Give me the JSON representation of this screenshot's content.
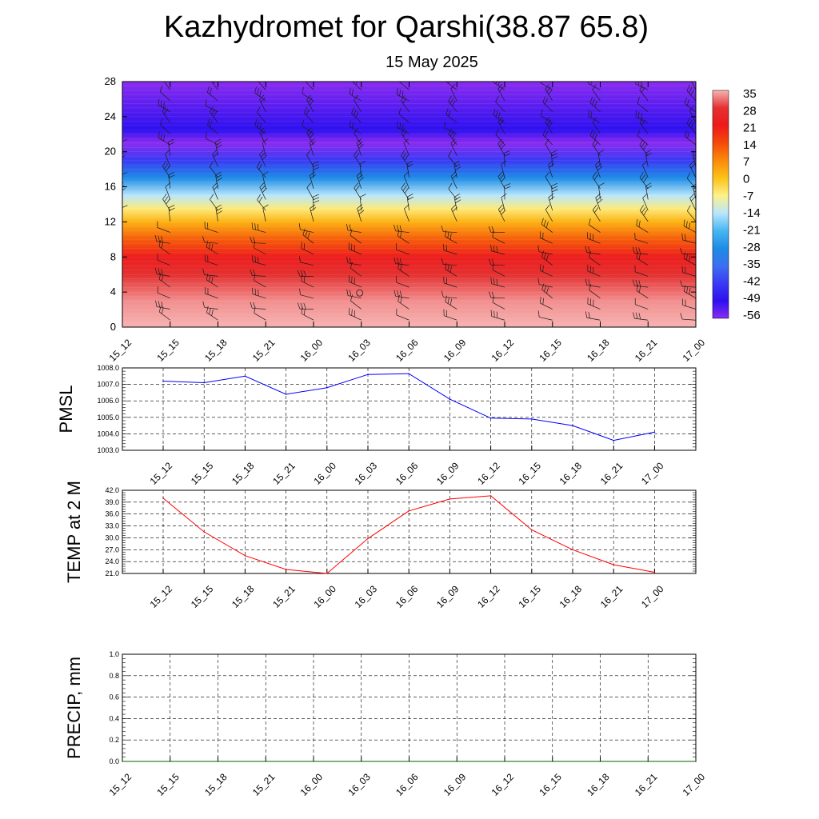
{
  "title": "Kazhydromet for Qarshi(38.87 65.8)",
  "subtitle": "15 May 2025",
  "time_labels": [
    "15_12",
    "15_15",
    "15_18",
    "15_21",
    "16_00",
    "16_03",
    "16_06",
    "16_09",
    "16_12",
    "16_15",
    "16_18",
    "16_21",
    "17_00"
  ],
  "chart_data": [
    {
      "type": "heatmap",
      "title": "",
      "ylabel": "",
      "ylim": [
        0,
        28
      ],
      "yticks": [
        "0",
        "4",
        "8",
        "12",
        "16",
        "20",
        "24",
        "28"
      ],
      "x": [
        "15_12",
        "15_15",
        "15_18",
        "15_21",
        "16_00",
        "16_03",
        "16_06",
        "16_09",
        "16_12",
        "16_15",
        "16_18",
        "16_21",
        "17_00"
      ],
      "colorbar_labels": [
        "35",
        "28",
        "21",
        "14",
        "7",
        "0",
        "-7",
        "-14",
        "-21",
        "-28",
        "-35",
        "-42",
        "-49",
        "-56"
      ],
      "colorbar_colors": [
        "#f7b3b3",
        "#e43030",
        "#ee1a1a",
        "#f44a0a",
        "#fb8a0a",
        "#fcc217",
        "#fdf18a",
        "#b9e6fb",
        "#47b7f2",
        "#1e8ce6",
        "#3a70f0",
        "#3a3af5",
        "#2d10f0",
        "#8a2cf0"
      ],
      "level_temperature_profile": [
        {
          "level": 0,
          "value": 35
        },
        {
          "level": 3,
          "value": 33
        },
        {
          "level": 6,
          "value": 28
        },
        {
          "level": 8,
          "value": 22
        },
        {
          "level": 10,
          "value": 12
        },
        {
          "level": 12,
          "value": 2
        },
        {
          "level": 13.5,
          "value": -6
        },
        {
          "level": 15,
          "value": -14
        },
        {
          "level": 17,
          "value": -28
        },
        {
          "level": 19,
          "value": -42
        },
        {
          "level": 21,
          "value": -56
        },
        {
          "level": 22.5,
          "value": -49
        },
        {
          "level": 28,
          "value": -60
        }
      ],
      "wind_barbs": true,
      "grid": false
    },
    {
      "type": "line",
      "ylabel": "PMSL",
      "ylim": [
        1003.0,
        1008.0
      ],
      "yticks": [
        "1003.0",
        "1004.0",
        "1005.0",
        "1006.0",
        "1007.0",
        "1008.0"
      ],
      "x": [
        "15_12",
        "15_15",
        "15_18",
        "15_21",
        "16_00",
        "16_03",
        "16_06",
        "16_09",
        "16_12",
        "16_15",
        "16_18",
        "16_21",
        "17_00"
      ],
      "series": [
        {
          "values": [
            1007.2,
            1007.1,
            1007.5,
            1006.4,
            1006.8,
            1007.6,
            1007.65,
            1006.1,
            1004.95,
            1004.9,
            1004.5,
            1003.6,
            1004.1
          ],
          "color": "#0000ff"
        }
      ],
      "grid": true
    },
    {
      "type": "line",
      "ylabel": "TEMP at 2 M",
      "ylim": [
        21.0,
        42.0
      ],
      "yticks": [
        "21.0",
        "24.0",
        "27.0",
        "30.0",
        "33.0",
        "36.0",
        "39.0",
        "42.0"
      ],
      "x": [
        "15_12",
        "15_15",
        "15_18",
        "15_21",
        "16_00",
        "16_03",
        "16_06",
        "16_09",
        "16_12",
        "16_15",
        "16_18",
        "16_21",
        "17_00"
      ],
      "series": [
        {
          "values": [
            40.0,
            31.5,
            25.5,
            22.0,
            21.0,
            29.8,
            36.8,
            39.8,
            40.6,
            32.0,
            27.0,
            23.2,
            21.3
          ],
          "color": "#ff0000"
        }
      ],
      "grid": true
    },
    {
      "type": "line",
      "ylabel": "PRECIP, mm",
      "ylim": [
        0.0,
        1.0
      ],
      "yticks": [
        "0.0",
        "0.2",
        "0.4",
        "0.6",
        "0.8",
        "1.0"
      ],
      "x": [
        "15_12",
        "15_15",
        "15_18",
        "15_21",
        "16_00",
        "16_03",
        "16_06",
        "16_09",
        "16_12",
        "16_15",
        "16_18",
        "16_21",
        "17_00"
      ],
      "series": [
        {
          "values": [
            0,
            0,
            0,
            0,
            0,
            0,
            0,
            0,
            0,
            0,
            0,
            0,
            0
          ],
          "color": "#006400"
        }
      ],
      "grid": true
    }
  ]
}
